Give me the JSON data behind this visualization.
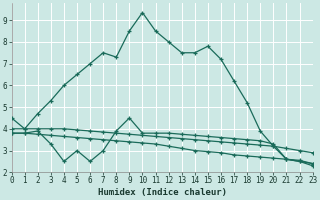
{
  "bg_color": "#cce8e4",
  "grid_color": "#ffffff",
  "line_color": "#1a6b5a",
  "xlabel": "Humidex (Indice chaleur)",
  "xlim": [
    0,
    23
  ],
  "ylim": [
    2.0,
    9.8
  ],
  "yticks": [
    2,
    3,
    4,
    5,
    6,
    7,
    8,
    9
  ],
  "xticks": [
    0,
    1,
    2,
    3,
    4,
    5,
    6,
    7,
    8,
    9,
    10,
    11,
    12,
    13,
    14,
    15,
    16,
    17,
    18,
    19,
    20,
    21,
    22,
    23
  ],
  "curve1_x": [
    0,
    1,
    2,
    3,
    4,
    5,
    6,
    7,
    8,
    9,
    10,
    11,
    12,
    13,
    14,
    15,
    16,
    17,
    18,
    19,
    20,
    21,
    22,
    23
  ],
  "curve1_y": [
    4.5,
    4.0,
    4.7,
    5.3,
    6.0,
    6.5,
    7.0,
    7.5,
    7.3,
    8.5,
    9.35,
    8.5,
    8.0,
    7.5,
    7.5,
    7.8,
    7.2,
    6.2,
    5.2,
    3.9,
    3.2,
    2.6,
    2.5,
    2.4
  ],
  "curve2_x": [
    0,
    1,
    2,
    3,
    4,
    5,
    6,
    7,
    8,
    9,
    10,
    11,
    12,
    13,
    14,
    15,
    16,
    17,
    18,
    19,
    20,
    21,
    22,
    23
  ],
  "curve2_y": [
    3.8,
    3.8,
    3.9,
    3.3,
    2.5,
    3.0,
    2.5,
    3.0,
    3.9,
    4.5,
    3.8,
    3.8,
    3.8,
    3.75,
    3.7,
    3.65,
    3.6,
    3.55,
    3.5,
    3.45,
    3.3,
    2.6,
    2.5,
    2.3
  ],
  "curve3_x": [
    0,
    1,
    2,
    3,
    4,
    5,
    6,
    7,
    8,
    9,
    10,
    11,
    12,
    13,
    14,
    15,
    16,
    17,
    18,
    19,
    20,
    21,
    22,
    23
  ],
  "curve3_y": [
    4.0,
    4.0,
    4.0,
    4.0,
    4.0,
    3.95,
    3.9,
    3.85,
    3.8,
    3.75,
    3.7,
    3.65,
    3.6,
    3.55,
    3.5,
    3.45,
    3.4,
    3.35,
    3.3,
    3.25,
    3.2,
    3.1,
    3.0,
    2.9
  ],
  "curve4_x": [
    0,
    1,
    2,
    3,
    4,
    5,
    6,
    7,
    8,
    9,
    10,
    11,
    12,
    13,
    14,
    15,
    16,
    17,
    18,
    19,
    20,
    21,
    22,
    23
  ],
  "curve4_y": [
    3.8,
    3.8,
    3.75,
    3.7,
    3.65,
    3.6,
    3.55,
    3.5,
    3.45,
    3.4,
    3.35,
    3.3,
    3.2,
    3.1,
    3.0,
    2.95,
    2.9,
    2.8,
    2.75,
    2.7,
    2.65,
    2.6,
    2.55,
    2.4
  ]
}
